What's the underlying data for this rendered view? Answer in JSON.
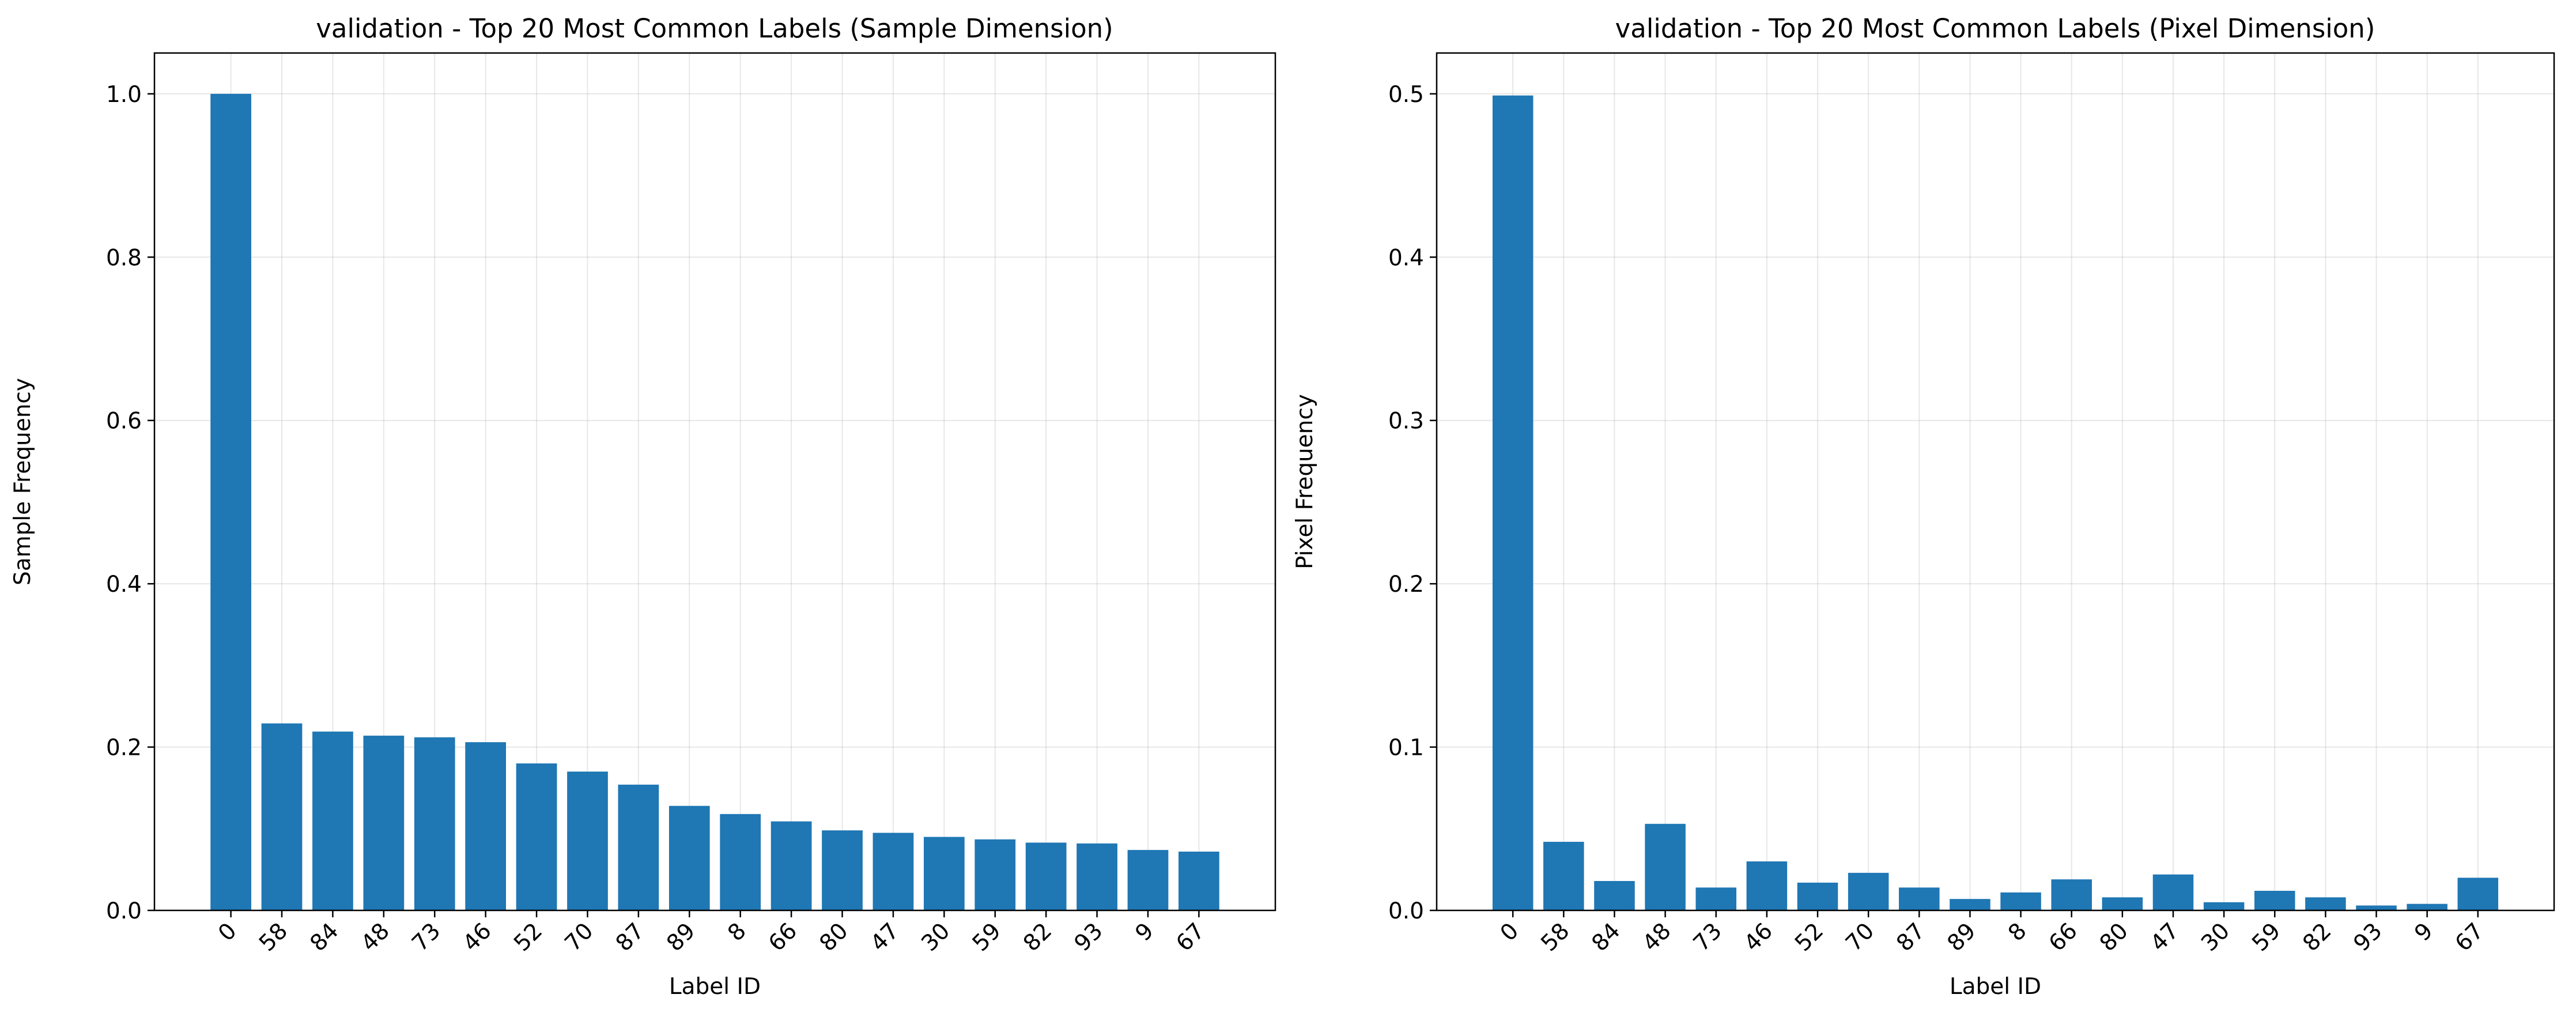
{
  "chart_data": [
    {
      "type": "bar",
      "title": "validation - Top 20 Most Common Labels (Sample Dimension)",
      "xlabel": "Label ID",
      "ylabel": "Sample Frequency",
      "categories": [
        "0",
        "58",
        "84",
        "48",
        "73",
        "46",
        "52",
        "70",
        "87",
        "89",
        "8",
        "66",
        "80",
        "47",
        "30",
        "59",
        "82",
        "93",
        "9",
        "67"
      ],
      "values": [
        1.0,
        0.229,
        0.219,
        0.214,
        0.212,
        0.206,
        0.18,
        0.17,
        0.154,
        0.128,
        0.118,
        0.109,
        0.098,
        0.095,
        0.09,
        0.087,
        0.083,
        0.082,
        0.074,
        0.072
      ],
      "ylim": [
        0,
        1.05
      ],
      "yticks": [
        "0.0",
        "0.2",
        "0.4",
        "0.6",
        "0.8",
        "1.0"
      ],
      "ytick_values": [
        0.0,
        0.2,
        0.4,
        0.6,
        0.8,
        1.0
      ],
      "grid": true,
      "bar_color": "#1f77b4"
    },
    {
      "type": "bar",
      "title": "validation - Top 20 Most Common Labels (Pixel Dimension)",
      "xlabel": "Label ID",
      "ylabel": "Pixel Frequency",
      "categories": [
        "0",
        "58",
        "84",
        "48",
        "73",
        "46",
        "52",
        "70",
        "87",
        "89",
        "8",
        "66",
        "80",
        "47",
        "30",
        "59",
        "82",
        "93",
        "9",
        "67"
      ],
      "values": [
        0.499,
        0.042,
        0.018,
        0.053,
        0.014,
        0.03,
        0.017,
        0.023,
        0.014,
        0.007,
        0.011,
        0.019,
        0.008,
        0.022,
        0.005,
        0.012,
        0.008,
        0.003,
        0.004,
        0.02
      ],
      "ylim": [
        0,
        0.525
      ],
      "yticks": [
        "0.0",
        "0.1",
        "0.2",
        "0.3",
        "0.4",
        "0.5"
      ],
      "ytick_values": [
        0.0,
        0.1,
        0.2,
        0.3,
        0.4,
        0.5
      ],
      "grid": true,
      "bar_color": "#1f77b4"
    }
  ]
}
